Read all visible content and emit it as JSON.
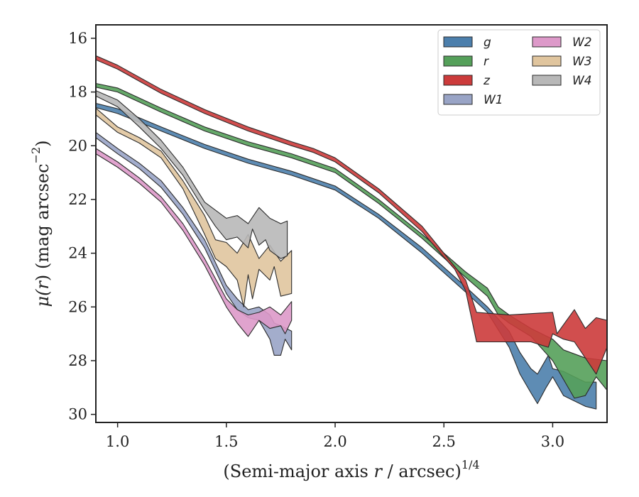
{
  "chart_data": {
    "type": "area",
    "xlabel": "(Semi-major axis r / arcsec)",
    "xlabel_parts": {
      "before": "(Semi-major axis ",
      "var": "r",
      "after": " / arcsec)",
      "sup": "1/4"
    },
    "ylabel_parts": {
      "mu": "μ(",
      "var": "r",
      "close": ")",
      "rest": " (mag arcsec",
      "sup": "−2",
      "end": ")"
    },
    "xlim": [
      0.9,
      3.25
    ],
    "ylim": [
      30.3,
      15.5
    ],
    "y_inverted": true,
    "x_ticks": [
      1.0,
      1.5,
      2.0,
      2.5,
      3.0
    ],
    "x_tick_labels": [
      "1.0",
      "1.5",
      "2.0",
      "2.5",
      "3.0"
    ],
    "y_ticks": [
      16,
      18,
      20,
      22,
      24,
      26,
      28,
      30
    ],
    "y_tick_labels": [
      "16",
      "18",
      "20",
      "22",
      "24",
      "26",
      "28",
      "30"
    ],
    "grid": false,
    "legend": {
      "placement": "top-right",
      "columns": 2
    },
    "series": [
      {
        "name": "g",
        "color": "#4c7fac",
        "upper": [
          [
            0.9,
            18.42
          ],
          [
            1.0,
            18.62
          ],
          [
            1.2,
            19.3
          ],
          [
            1.4,
            19.95
          ],
          [
            1.6,
            20.5
          ],
          [
            1.8,
            20.95
          ],
          [
            2.0,
            21.5
          ],
          [
            2.2,
            22.55
          ],
          [
            2.4,
            23.8
          ],
          [
            2.6,
            25.25
          ],
          [
            2.7,
            26.0
          ],
          [
            2.8,
            26.9
          ],
          [
            2.85,
            27.7
          ],
          [
            2.9,
            28.3
          ],
          [
            2.93,
            28.5
          ],
          [
            2.98,
            27.8
          ],
          [
            3.0,
            28.3
          ],
          [
            3.05,
            28.4
          ],
          [
            3.1,
            28.6
          ],
          [
            3.15,
            28.8
          ],
          [
            3.2,
            28.8
          ]
        ],
        "lower": [
          [
            3.2,
            29.8
          ],
          [
            3.15,
            29.7
          ],
          [
            3.1,
            29.5
          ],
          [
            3.05,
            29.3
          ],
          [
            3.0,
            28.6
          ],
          [
            2.97,
            29.0
          ],
          [
            2.93,
            29.6
          ],
          [
            2.9,
            29.2
          ],
          [
            2.85,
            28.5
          ],
          [
            2.8,
            27.5
          ],
          [
            2.7,
            26.2
          ],
          [
            2.6,
            25.45
          ],
          [
            2.4,
            24.0
          ],
          [
            2.2,
            22.7
          ],
          [
            2.0,
            21.65
          ],
          [
            1.8,
            21.1
          ],
          [
            1.6,
            20.65
          ],
          [
            1.4,
            20.1
          ],
          [
            1.2,
            19.45
          ],
          [
            1.0,
            18.8
          ],
          [
            0.9,
            18.58
          ]
        ]
      },
      {
        "name": "r",
        "color": "#55a05a",
        "upper": [
          [
            0.9,
            17.68
          ],
          [
            1.0,
            17.85
          ],
          [
            1.2,
            18.6
          ],
          [
            1.4,
            19.3
          ],
          [
            1.6,
            19.85
          ],
          [
            1.8,
            20.3
          ],
          [
            2.0,
            20.85
          ],
          [
            2.2,
            22.0
          ],
          [
            2.4,
            23.3
          ],
          [
            2.6,
            24.7
          ],
          [
            2.7,
            25.3
          ],
          [
            2.75,
            26.0
          ],
          [
            2.8,
            26.3
          ],
          [
            2.9,
            26.8
          ],
          [
            3.0,
            27.2
          ],
          [
            3.05,
            27.6
          ],
          [
            3.15,
            27.9
          ],
          [
            3.25,
            28.0
          ]
        ],
        "lower": [
          [
            3.25,
            29.1
          ],
          [
            3.2,
            28.6
          ],
          [
            3.15,
            29.3
          ],
          [
            3.1,
            29.4
          ],
          [
            3.05,
            28.7
          ],
          [
            3.0,
            28.0
          ],
          [
            2.9,
            27.1
          ],
          [
            2.8,
            26.6
          ],
          [
            2.75,
            26.3
          ],
          [
            2.7,
            25.6
          ],
          [
            2.6,
            24.9
          ],
          [
            2.4,
            23.45
          ],
          [
            2.2,
            22.15
          ],
          [
            2.0,
            21.0
          ],
          [
            1.8,
            20.45
          ],
          [
            1.6,
            20.0
          ],
          [
            1.4,
            19.45
          ],
          [
            1.2,
            18.75
          ],
          [
            1.0,
            18.0
          ],
          [
            0.9,
            17.82
          ]
        ]
      },
      {
        "name": "z",
        "color": "#cc3b3b",
        "upper": [
          [
            0.9,
            16.65
          ],
          [
            1.0,
            17.0
          ],
          [
            1.2,
            17.9
          ],
          [
            1.4,
            18.65
          ],
          [
            1.6,
            19.3
          ],
          [
            1.8,
            19.85
          ],
          [
            1.9,
            20.1
          ],
          [
            2.0,
            20.45
          ],
          [
            2.2,
            21.6
          ],
          [
            2.4,
            23.0
          ],
          [
            2.5,
            24.0
          ],
          [
            2.55,
            24.5
          ],
          [
            2.6,
            25.0
          ],
          [
            2.65,
            26.2
          ],
          [
            2.8,
            26.3
          ],
          [
            3.0,
            26.2
          ],
          [
            3.02,
            27.0
          ],
          [
            3.1,
            26.1
          ],
          [
            3.15,
            26.8
          ],
          [
            3.2,
            26.4
          ],
          [
            3.25,
            26.5
          ]
        ],
        "lower": [
          [
            3.25,
            27.5
          ],
          [
            3.2,
            28.5
          ],
          [
            3.15,
            27.9
          ],
          [
            3.1,
            27.3
          ],
          [
            3.05,
            27.2
          ],
          [
            3.0,
            27.0
          ],
          [
            2.98,
            27.5
          ],
          [
            2.9,
            27.3
          ],
          [
            2.8,
            27.3
          ],
          [
            2.65,
            27.3
          ],
          [
            2.6,
            25.4
          ],
          [
            2.55,
            24.6
          ],
          [
            2.5,
            24.15
          ],
          [
            2.4,
            23.2
          ],
          [
            2.2,
            21.75
          ],
          [
            2.0,
            20.6
          ],
          [
            1.9,
            20.25
          ],
          [
            1.8,
            20.0
          ],
          [
            1.6,
            19.45
          ],
          [
            1.4,
            18.8
          ],
          [
            1.2,
            18.05
          ],
          [
            1.0,
            17.15
          ],
          [
            0.9,
            16.8
          ]
        ]
      },
      {
        "name": "W1",
        "color": "#99a4c6",
        "upper": [
          [
            0.9,
            19.5
          ],
          [
            1.0,
            20.1
          ],
          [
            1.1,
            20.65
          ],
          [
            1.2,
            21.3
          ],
          [
            1.3,
            22.3
          ],
          [
            1.4,
            23.5
          ],
          [
            1.5,
            25.2
          ],
          [
            1.55,
            25.7
          ],
          [
            1.6,
            26.1
          ],
          [
            1.65,
            26.0
          ],
          [
            1.7,
            26.3
          ],
          [
            1.72,
            26.6
          ],
          [
            1.75,
            26.7
          ],
          [
            1.8,
            26.9
          ]
        ],
        "lower": [
          [
            1.8,
            27.6
          ],
          [
            1.77,
            27.2
          ],
          [
            1.75,
            27.8
          ],
          [
            1.72,
            27.8
          ],
          [
            1.7,
            27.2
          ],
          [
            1.65,
            26.5
          ],
          [
            1.6,
            26.4
          ],
          [
            1.55,
            26.1
          ],
          [
            1.5,
            25.5
          ],
          [
            1.4,
            23.8
          ],
          [
            1.3,
            22.55
          ],
          [
            1.2,
            21.55
          ],
          [
            1.1,
            20.85
          ],
          [
            1.0,
            20.3
          ],
          [
            0.9,
            19.7
          ]
        ]
      },
      {
        "name": "W2",
        "color": "#dd99c9",
        "upper": [
          [
            0.9,
            20.1
          ],
          [
            1.0,
            20.6
          ],
          [
            1.1,
            21.2
          ],
          [
            1.2,
            21.9
          ],
          [
            1.3,
            22.9
          ],
          [
            1.4,
            24.2
          ],
          [
            1.5,
            25.7
          ],
          [
            1.55,
            26.1
          ],
          [
            1.6,
            26.3
          ],
          [
            1.65,
            26.2
          ],
          [
            1.7,
            26.0
          ],
          [
            1.75,
            26.3
          ],
          [
            1.8,
            25.8
          ]
        ],
        "lower": [
          [
            1.8,
            26.5
          ],
          [
            1.77,
            27.0
          ],
          [
            1.75,
            26.7
          ],
          [
            1.7,
            26.8
          ],
          [
            1.65,
            26.5
          ],
          [
            1.6,
            27.1
          ],
          [
            1.55,
            26.6
          ],
          [
            1.5,
            26.0
          ],
          [
            1.4,
            24.45
          ],
          [
            1.3,
            23.15
          ],
          [
            1.2,
            22.1
          ],
          [
            1.1,
            21.4
          ],
          [
            1.0,
            20.8
          ],
          [
            0.9,
            20.3
          ]
        ]
      },
      {
        "name": "W3",
        "color": "#e0c59e",
        "upper": [
          [
            0.9,
            18.6
          ],
          [
            1.0,
            19.3
          ],
          [
            1.1,
            19.7
          ],
          [
            1.2,
            20.2
          ],
          [
            1.3,
            21.3
          ],
          [
            1.4,
            22.6
          ],
          [
            1.45,
            23.5
          ],
          [
            1.5,
            23.6
          ],
          [
            1.55,
            24.0
          ],
          [
            1.6,
            23.3
          ],
          [
            1.65,
            24.2
          ],
          [
            1.7,
            23.7
          ],
          [
            1.75,
            24.3
          ],
          [
            1.8,
            23.9
          ]
        ],
        "lower": [
          [
            1.8,
            25.5
          ],
          [
            1.75,
            25.6
          ],
          [
            1.72,
            24.5
          ],
          [
            1.7,
            25.0
          ],
          [
            1.65,
            24.6
          ],
          [
            1.62,
            25.7
          ],
          [
            1.6,
            24.8
          ],
          [
            1.58,
            26.0
          ],
          [
            1.55,
            25.0
          ],
          [
            1.5,
            24.5
          ],
          [
            1.45,
            24.2
          ],
          [
            1.4,
            23.3
          ],
          [
            1.3,
            21.6
          ],
          [
            1.2,
            20.45
          ],
          [
            1.1,
            19.9
          ],
          [
            1.0,
            19.5
          ],
          [
            0.9,
            18.85
          ]
        ]
      },
      {
        "name": "W4",
        "color": "#b8b8b8",
        "upper": [
          [
            0.9,
            17.95
          ],
          [
            1.0,
            18.3
          ],
          [
            1.1,
            19.0
          ],
          [
            1.2,
            19.8
          ],
          [
            1.3,
            20.8
          ],
          [
            1.4,
            22.1
          ],
          [
            1.5,
            22.7
          ],
          [
            1.55,
            22.6
          ],
          [
            1.6,
            22.9
          ],
          [
            1.65,
            22.3
          ],
          [
            1.7,
            22.7
          ],
          [
            1.75,
            22.9
          ],
          [
            1.78,
            22.8
          ]
        ],
        "lower": [
          [
            1.78,
            24.1
          ],
          [
            1.75,
            24.2
          ],
          [
            1.7,
            23.9
          ],
          [
            1.68,
            23.5
          ],
          [
            1.65,
            23.7
          ],
          [
            1.62,
            23.1
          ],
          [
            1.6,
            23.8
          ],
          [
            1.55,
            23.4
          ],
          [
            1.5,
            23.5
          ],
          [
            1.45,
            23.0
          ],
          [
            1.4,
            22.4
          ],
          [
            1.3,
            21.1
          ],
          [
            1.2,
            20.1
          ],
          [
            1.1,
            19.3
          ],
          [
            1.0,
            18.55
          ],
          [
            0.9,
            18.15
          ]
        ]
      }
    ]
  }
}
